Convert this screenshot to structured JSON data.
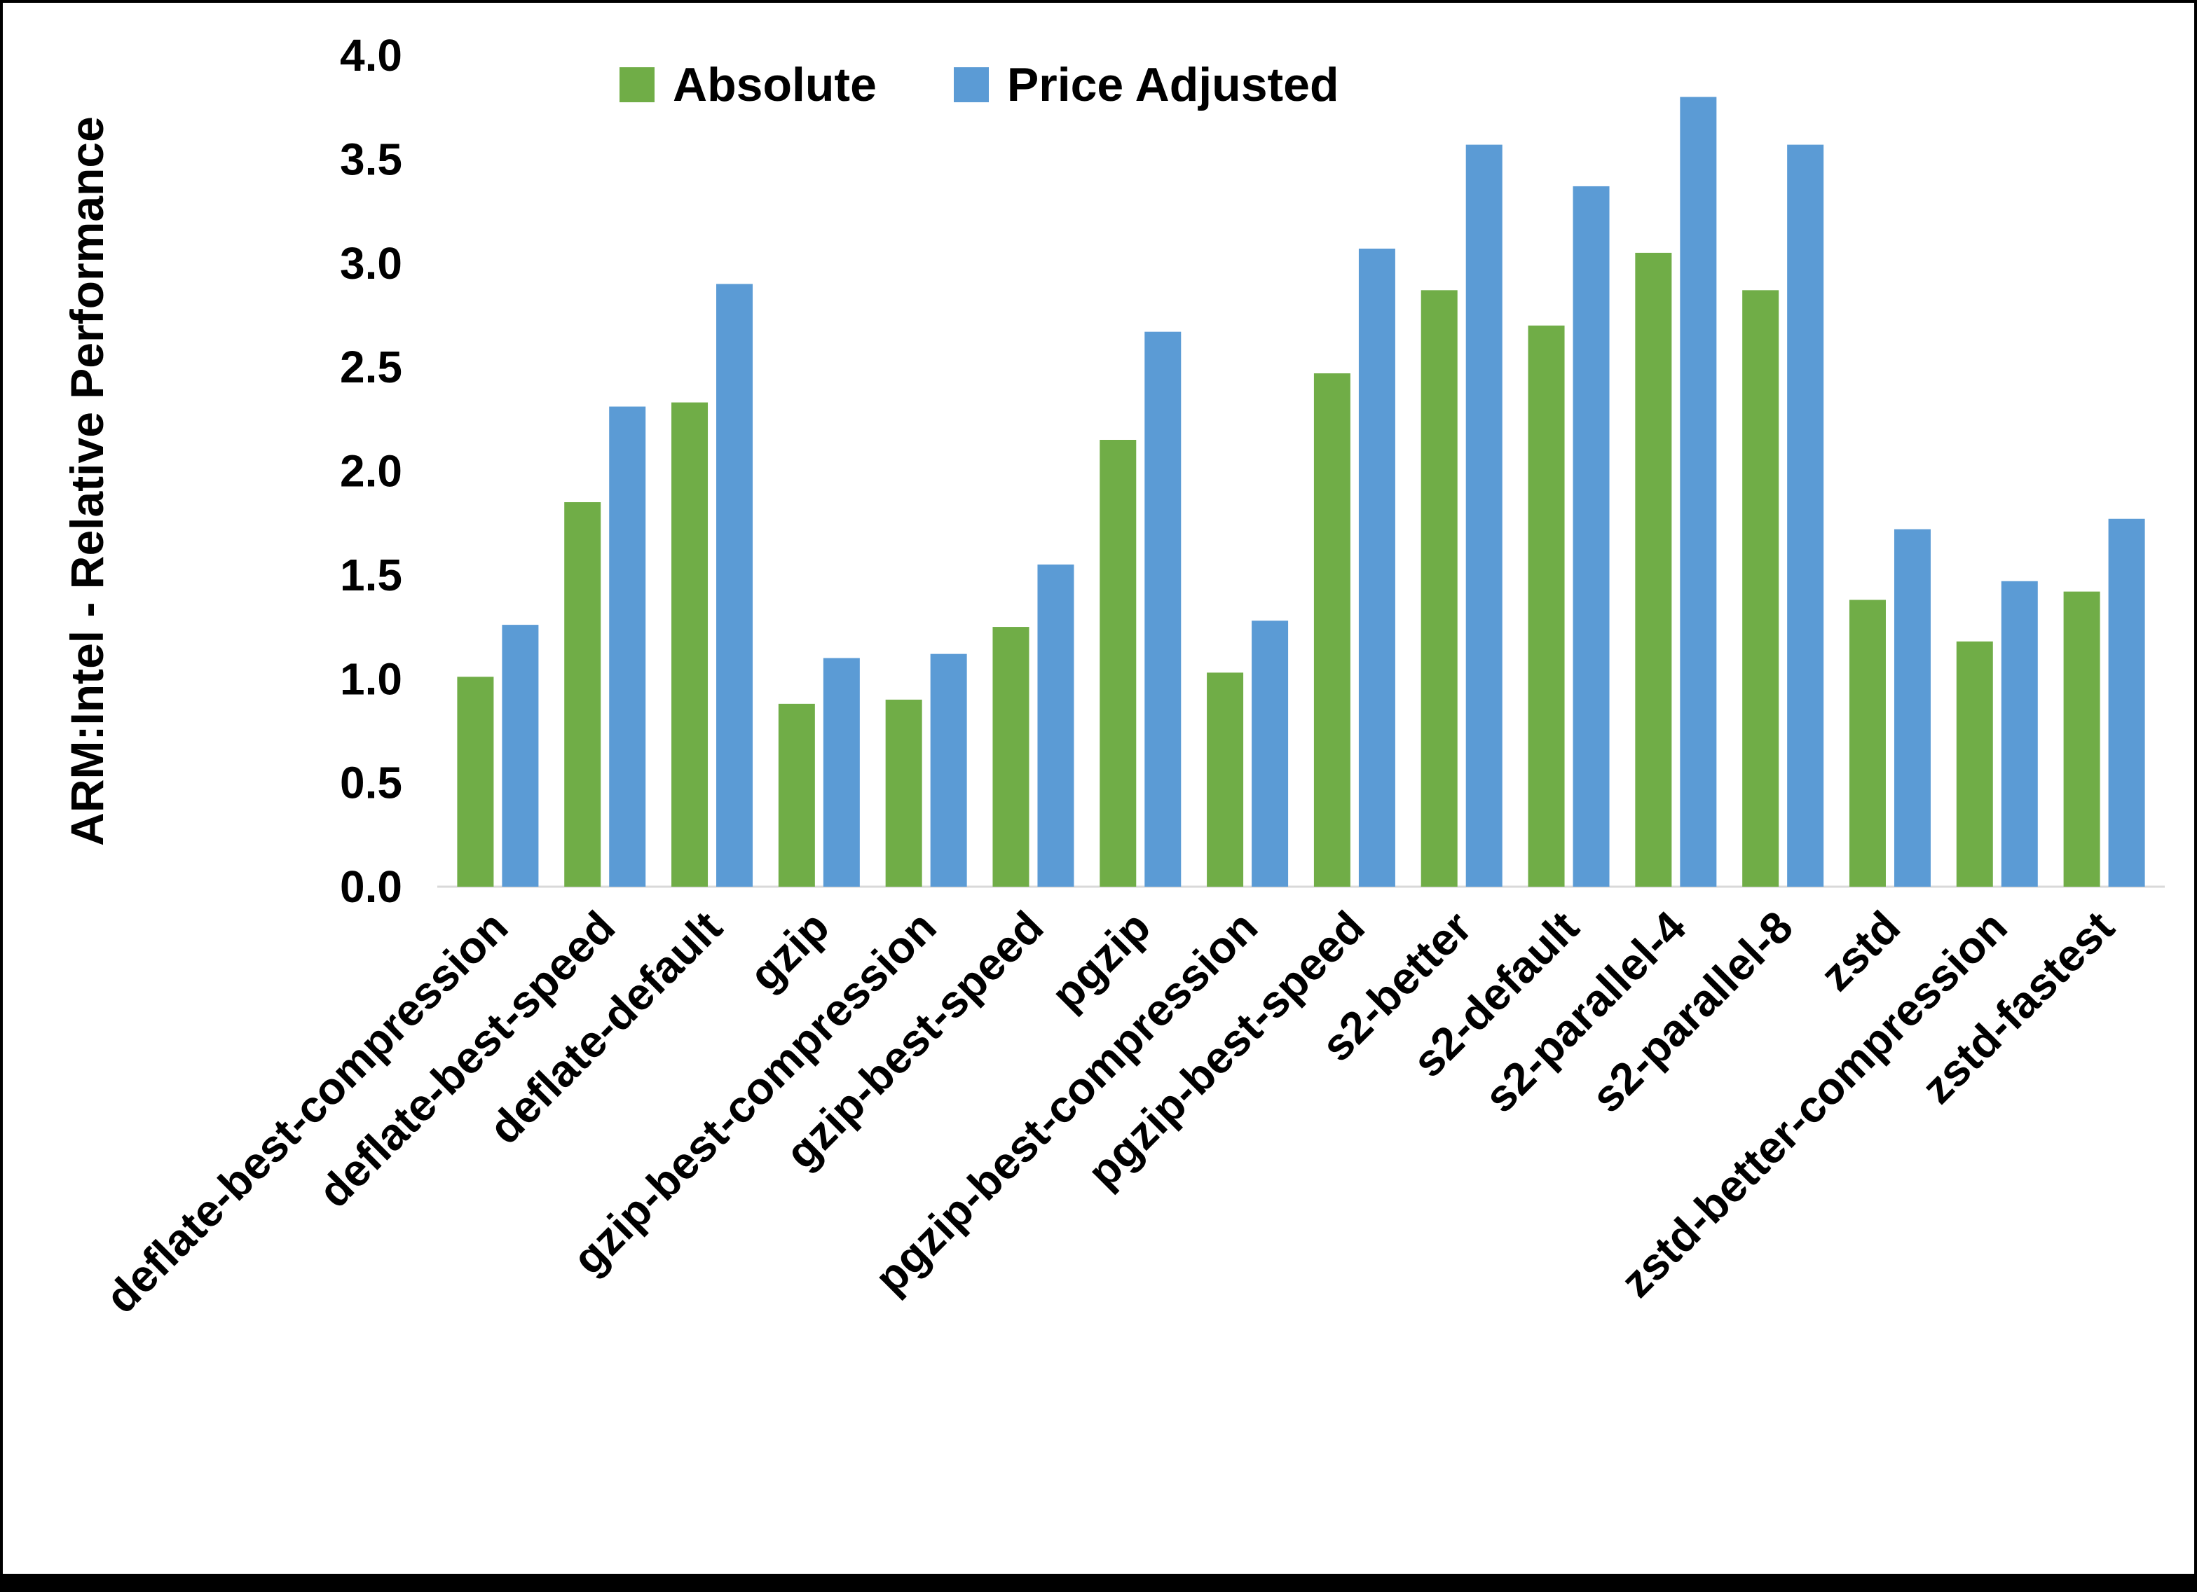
{
  "chart_data": {
    "type": "bar",
    "title": "",
    "xlabel": "",
    "ylabel": "ARM:Intel - Relative Performance",
    "ylim": [
      0.0,
      4.0
    ],
    "ytick_step": 0.5,
    "grid": false,
    "legend_position": "top",
    "categories": [
      "deflate-best-compression",
      "deflate-best-speed",
      "deflate-default",
      "gzip",
      "gzip-best-compression",
      "gzip-best-speed",
      "pgzip",
      "pgzip-best-compression",
      "pgzip-best-speed",
      "s2-better",
      "s2-default",
      "s2-parallel-4",
      "s2-parallel-8",
      "zstd",
      "zstd-better-compression",
      "zstd-fastest"
    ],
    "series": [
      {
        "name": "Absolute",
        "color": "#70AD47",
        "values": [
          1.01,
          1.85,
          2.33,
          0.88,
          0.9,
          1.25,
          2.15,
          1.03,
          2.47,
          2.87,
          2.7,
          3.05,
          2.87,
          1.38,
          1.18,
          1.42
        ]
      },
      {
        "name": "Price Adjusted",
        "color": "#5B9BD5",
        "values": [
          1.26,
          2.31,
          2.9,
          1.1,
          1.12,
          1.55,
          2.67,
          1.28,
          3.07,
          3.57,
          3.37,
          3.8,
          3.57,
          1.72,
          1.47,
          1.77
        ]
      }
    ],
    "axis_line_color": "#d9d9d9"
  }
}
